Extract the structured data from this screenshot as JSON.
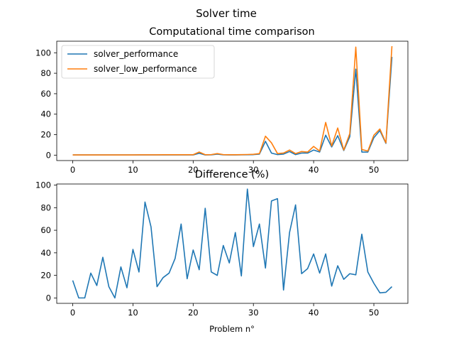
{
  "suptitle": "Solver time",
  "chart_data": [
    {
      "type": "line",
      "title": "Computational time comparison",
      "xlabel": "",
      "ylabel": "",
      "xlim": [
        -2.65,
        55.65
      ],
      "ylim": [
        -5.3,
        111.3
      ],
      "xticks": [
        "0",
        "10",
        "20",
        "30",
        "40",
        "50"
      ],
      "yticks": [
        "0",
        "20",
        "40",
        "60",
        "80",
        "100"
      ],
      "legend": "upper-left",
      "grid": false,
      "x": [
        0,
        1,
        2,
        3,
        4,
        5,
        6,
        7,
        8,
        9,
        10,
        11,
        12,
        13,
        14,
        15,
        16,
        17,
        18,
        19,
        20,
        21,
        22,
        23,
        24,
        25,
        26,
        27,
        28,
        29,
        30,
        31,
        32,
        33,
        34,
        35,
        36,
        37,
        38,
        39,
        40,
        41,
        42,
        43,
        44,
        45,
        46,
        47,
        48,
        49,
        50,
        51,
        52,
        53
      ],
      "series": [
        {
          "name": "solver_performance",
          "color": "#1f77b4",
          "values": [
            0.2,
            0.2,
            0.2,
            0.2,
            0.2,
            0.2,
            0.2,
            0.2,
            0.2,
            0.2,
            0.2,
            0.2,
            0.2,
            0.2,
            0.2,
            0.2,
            0.2,
            0.2,
            0.2,
            0.2,
            0.2,
            1.8,
            0.2,
            0.3,
            1.0,
            0.3,
            0.2,
            0.2,
            0.3,
            0.4,
            0.5,
            1.0,
            13.5,
            2.0,
            0.5,
            1.0,
            3.5,
            0.5,
            2.0,
            2.0,
            5.0,
            3.0,
            19.5,
            8.0,
            19.0,
            4.5,
            18.0,
            84.0,
            3.0,
            3.0,
            17.0,
            24.0,
            11.5,
            96.0
          ]
        },
        {
          "name": "solver_low_performance",
          "color": "#ff7f0e",
          "values": [
            0.2,
            0.2,
            0.2,
            0.2,
            0.2,
            0.2,
            0.2,
            0.2,
            0.2,
            0.2,
            0.2,
            0.3,
            0.3,
            0.3,
            0.3,
            0.4,
            0.4,
            0.4,
            0.4,
            0.4,
            0.4,
            3.0,
            0.4,
            0.5,
            1.5,
            0.5,
            0.4,
            0.4,
            0.5,
            0.6,
            0.8,
            1.5,
            18.5,
            12.0,
            1.5,
            2.0,
            5.0,
            1.5,
            3.5,
            3.0,
            8.5,
            4.0,
            32.0,
            9.0,
            26.5,
            5.0,
            21.0,
            105.5,
            5.5,
            4.0,
            19.5,
            25.5,
            12.0,
            106.5
          ]
        }
      ]
    },
    {
      "type": "line",
      "title": "Difference (%)",
      "xlabel": "Problem n°",
      "ylabel": "",
      "xlim": [
        -2.65,
        55.65
      ],
      "ylim": [
        -4.8,
        101.0
      ],
      "xticks": [
        "0",
        "10",
        "20",
        "30",
        "40",
        "50"
      ],
      "yticks": [
        "0",
        "20",
        "40",
        "60",
        "80",
        "100"
      ],
      "grid": false,
      "x": [
        0,
        1,
        2,
        3,
        4,
        5,
        6,
        7,
        8,
        9,
        10,
        11,
        12,
        13,
        14,
        15,
        16,
        17,
        18,
        19,
        20,
        21,
        22,
        23,
        24,
        25,
        26,
        27,
        28,
        29,
        30,
        31,
        32,
        33,
        34,
        35,
        36,
        37,
        38,
        39,
        40,
        41,
        42,
        43,
        44,
        45,
        46,
        47,
        48,
        49,
        50,
        51,
        52,
        53
      ],
      "series": [
        {
          "name": "",
          "color": "#1f77b4",
          "values": [
            15.5,
            0,
            0,
            22,
            11,
            36,
            10,
            0,
            27.5,
            9,
            43,
            23,
            85,
            63,
            10,
            18,
            22,
            35,
            65.5,
            17,
            42.5,
            25,
            79.5,
            23,
            20,
            46.5,
            31,
            58,
            19.5,
            96.5,
            45.5,
            65.5,
            26.5,
            86,
            88,
            7,
            58,
            82.5,
            21.5,
            26,
            39,
            22,
            39,
            10.5,
            28.5,
            16.5,
            21.5,
            20.5,
            56.5,
            23,
            13,
            4.5,
            5,
            10
          ]
        }
      ]
    }
  ]
}
